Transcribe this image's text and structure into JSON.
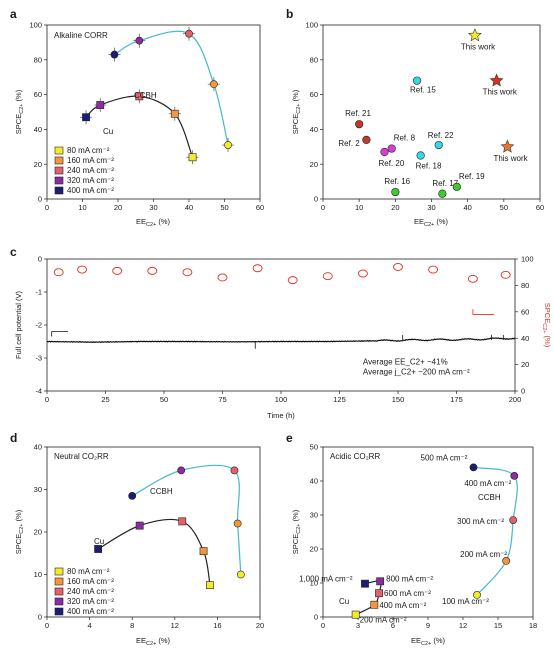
{
  "panel_a": {
    "letter": "a",
    "title": "Alkaline CORR",
    "xlabel": "EE_C2+ (%)",
    "ylabel": "SPCE_C2+ (%)",
    "xlim": [
      0,
      60
    ],
    "ylim": [
      0,
      100
    ],
    "xticks": [
      0,
      10,
      20,
      30,
      40,
      50,
      60
    ],
    "yticks": [
      0,
      20,
      40,
      60,
      80,
      100
    ],
    "labels": {
      "ccbh": "CCBH",
      "cu": "Cu"
    },
    "legend": [
      {
        "label": "80 mA cm⁻²",
        "color": "#f2ea2c"
      },
      {
        "label": "160 mA cm⁻²",
        "color": "#f2973d"
      },
      {
        "label": "240 mA cm⁻²",
        "color": "#e2616c"
      },
      {
        "label": "320 mA cm⁻²",
        "color": "#8b2ca0"
      },
      {
        "label": "400 mA cm⁻²",
        "color": "#1b1e75"
      }
    ]
  },
  "panel_b": {
    "letter": "b",
    "xlabel": "EE_C2+ (%)",
    "ylabel": "SPCE_C2+ (%)",
    "xlim": [
      0,
      60
    ],
    "ylim": [
      0,
      100
    ],
    "xticks": [
      0,
      10,
      20,
      30,
      40,
      50,
      60
    ],
    "yticks": [
      0,
      20,
      40,
      60,
      80,
      100
    ]
  },
  "panel_c": {
    "letter": "c",
    "xlabel": "Time (h)",
    "ylabel": "Full cell potential (V)",
    "y2label": "SPCE_C2+ (%)",
    "xlim": [
      0,
      200
    ],
    "ylim": [
      -4,
      0
    ],
    "y2lim": [
      0,
      100
    ],
    "xticks": [
      0,
      25,
      50,
      75,
      100,
      125,
      150,
      175,
      200
    ],
    "yticks": [
      0,
      -1,
      -2,
      -3,
      -4
    ],
    "y2ticks": [
      0,
      20,
      40,
      60,
      80,
      100
    ],
    "note1": "Average EE_C2+ ~41%",
    "note2": "Average j_C2+ ~200 mA cm⁻²"
  },
  "panel_d": {
    "letter": "d",
    "title": "Neutral CO₂RR",
    "xlabel": "EE_C2+ (%)",
    "ylabel": "SPCE_C2+ (%)",
    "xlim": [
      0,
      20
    ],
    "ylim": [
      0,
      40
    ],
    "xticks": [
      0,
      4,
      8,
      12,
      16,
      20
    ],
    "yticks": [
      0,
      10,
      20,
      30,
      40
    ],
    "labels": {
      "ccbh": "CCBH",
      "cu": "Cu"
    },
    "legend": [
      {
        "label": "80 mA cm⁻²",
        "color": "#f2ea2c"
      },
      {
        "label": "160 mA cm⁻²",
        "color": "#f2973d"
      },
      {
        "label": "240 mA cm⁻²",
        "color": "#e2616c"
      },
      {
        "label": "320 mA cm⁻²",
        "color": "#8b2ca0"
      },
      {
        "label": "400 mA cm⁻²",
        "color": "#1b1e75"
      }
    ]
  },
  "panel_e": {
    "letter": "e",
    "title": "Acidic CO₂RR",
    "xlabel": "EE_C2+ (%)",
    "ylabel": "SPCE_C2+ (%)",
    "xlim": [
      0,
      18
    ],
    "ylim": [
      0,
      50
    ],
    "xticks": [
      0,
      3,
      6,
      9,
      12,
      15,
      18
    ],
    "yticks": [
      0,
      10,
      20,
      30,
      40,
      50
    ],
    "labels": {
      "ccbh": "CCBH",
      "cu": "Cu"
    }
  },
  "chart_data": [
    {
      "panel": "a",
      "type": "scatter",
      "series": [
        {
          "name": "CCBH",
          "points": [
            {
              "x": 51,
              "y": 31,
              "c": "80"
            },
            {
              "x": 47,
              "y": 66,
              "c": "160"
            },
            {
              "x": 40,
              "y": 95,
              "c": "240"
            },
            {
              "x": 26,
              "y": 91,
              "c": "320"
            },
            {
              "x": 19,
              "y": 83,
              "c": "400"
            }
          ]
        },
        {
          "name": "Cu",
          "points": [
            {
              "x": 41,
              "y": 24,
              "c": "80"
            },
            {
              "x": 36,
              "y": 49,
              "c": "160"
            },
            {
              "x": 26,
              "y": 59,
              "c": "240"
            },
            {
              "x": 15,
              "y": 54,
              "c": "320"
            },
            {
              "x": 11,
              "y": 47,
              "c": "400"
            }
          ]
        }
      ]
    },
    {
      "panel": "b",
      "type": "scatter",
      "points": [
        {
          "label": "Ref. 21",
          "x": 10,
          "y": 43,
          "color": "#c0392b"
        },
        {
          "label": "Ref. 2",
          "x": 12,
          "y": 34,
          "color": "#c0392b"
        },
        {
          "label": "Ref. 20",
          "x": 17,
          "y": 27,
          "color": "#d63fd6"
        },
        {
          "label": "Ref. 8",
          "x": 19,
          "y": 29,
          "color": "#d63fd6"
        },
        {
          "label": "Ref. 15",
          "x": 26,
          "y": 68,
          "color": "#37d6e0"
        },
        {
          "label": "Ref. 18",
          "x": 27,
          "y": 25,
          "color": "#37d6e0"
        },
        {
          "label": "Ref. 22",
          "x": 32,
          "y": 31,
          "color": "#37d6e0"
        },
        {
          "label": "Ref. 16",
          "x": 20,
          "y": 4,
          "color": "#3dcc2a"
        },
        {
          "label": "Ref. 17",
          "x": 33,
          "y": 3,
          "color": "#3dcc2a"
        },
        {
          "label": "Ref. 19",
          "x": 37,
          "y": 7,
          "color": "#3dcc2a"
        },
        {
          "label": "This work",
          "x": 42,
          "y": 94,
          "color": "#f3ea2c",
          "star": true
        },
        {
          "label": "This work",
          "x": 48,
          "y": 68,
          "color": "#d8301f",
          "star": true
        },
        {
          "label": "This work",
          "x": 51,
          "y": 30,
          "color": "#e9752c",
          "star": true
        }
      ]
    },
    {
      "panel": "c",
      "type": "line",
      "potential": {
        "time": [
          0,
          20,
          40,
          60,
          80,
          100,
          120,
          140,
          160,
          180,
          200
        ],
        "values": [
          -2.5,
          -2.52,
          -2.5,
          -2.5,
          -2.51,
          -2.5,
          -2.5,
          -2.48,
          -2.45,
          -2.44,
          -2.4
        ]
      },
      "spce": {
        "time": [
          5,
          15,
          30,
          45,
          60,
          75,
          90,
          105,
          120,
          135,
          150,
          165,
          182,
          196
        ],
        "values": [
          90,
          92,
          91,
          91,
          90,
          86,
          93,
          84,
          87,
          89,
          94,
          92,
          85,
          88
        ]
      }
    },
    {
      "panel": "d",
      "type": "scatter",
      "series": [
        {
          "name": "CCBH",
          "points": [
            {
              "x": 18.2,
              "y": 10,
              "c": "80"
            },
            {
              "x": 17.9,
              "y": 22,
              "c": "160"
            },
            {
              "x": 17.6,
              "y": 34.5,
              "c": "240"
            },
            {
              "x": 12.6,
              "y": 34.5,
              "c": "320"
            },
            {
              "x": 8.0,
              "y": 28.5,
              "c": "400"
            }
          ]
        },
        {
          "name": "Cu",
          "points": [
            {
              "x": 15.3,
              "y": 7.5,
              "c": "80"
            },
            {
              "x": 14.7,
              "y": 15.5,
              "c": "160"
            },
            {
              "x": 12.7,
              "y": 22.5,
              "c": "240"
            },
            {
              "x": 8.7,
              "y": 21.5,
              "c": "320"
            },
            {
              "x": 4.8,
              "y": 16,
              "c": "400"
            }
          ]
        }
      ]
    },
    {
      "panel": "e",
      "type": "scatter",
      "series": [
        {
          "name": "CCBH",
          "points": [
            {
              "x": 13.2,
              "y": 6.5,
              "label": "100 mA cm⁻²",
              "color": "#f2ea2c"
            },
            {
              "x": 15.7,
              "y": 16.5,
              "label": "200 mA cm⁻²",
              "color": "#f2973d"
            },
            {
              "x": 16.3,
              "y": 28.5,
              "label": "300 mA cm⁻²",
              "color": "#e2616c"
            },
            {
              "x": 16.4,
              "y": 41.5,
              "label": "400 mA cm⁻²",
              "color": "#8b2ca0"
            },
            {
              "x": 12.9,
              "y": 44,
              "label": "500 mA cm⁻²",
              "color": "#1b1e75"
            }
          ]
        },
        {
          "name": "Cu",
          "points": [
            {
              "x": 2.8,
              "y": 0.7,
              "label": "200 mA cm⁻²",
              "color": "#f2ea2c"
            },
            {
              "x": 4.4,
              "y": 3.6,
              "label": "400 mA cm⁻²",
              "color": "#f2973d"
            },
            {
              "x": 4.8,
              "y": 7,
              "label": "600 mA cm⁻²",
              "color": "#e2616c"
            },
            {
              "x": 4.9,
              "y": 10.5,
              "label": "800 mA cm⁻²",
              "color": "#8b2ca0"
            },
            {
              "x": 3.6,
              "y": 9.8,
              "label": "1,000 mA cm⁻²",
              "color": "#1b1e75"
            }
          ]
        }
      ]
    }
  ]
}
